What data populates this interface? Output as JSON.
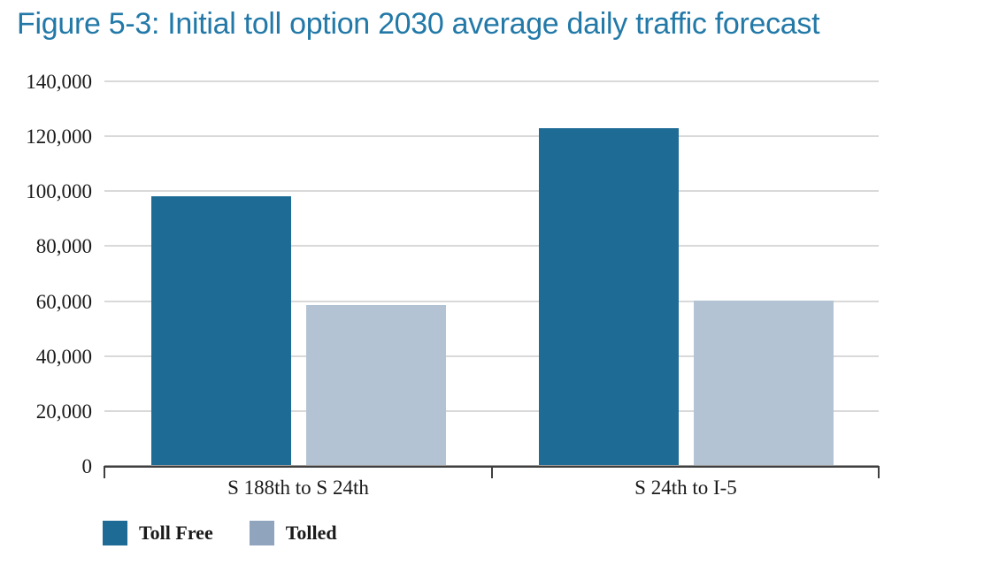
{
  "title": "Figure 5-3: Initial toll option 2030 average daily traffic forecast",
  "colors": {
    "title_text": "#2279A8",
    "axis_text": "#1a1a1a",
    "gridline": "#d9d9d9",
    "axis_line": "#3f3f3f",
    "toll_free_bar": "#1E6C96",
    "tolled_bar": "#B4C3D4",
    "tolled_legend_swatch": "#90A5BD"
  },
  "chart_data": {
    "type": "bar",
    "title": "Figure 5-3: Initial toll option 2030 average daily traffic forecast",
    "categories": [
      "S 188th to S 24th",
      "S 24th to I-5"
    ],
    "series": [
      {
        "name": "Toll Free",
        "values": [
          98000,
          123000
        ],
        "color": "#1E6C96",
        "legend_color": "#1E6C96"
      },
      {
        "name": "Tolled",
        "values": [
          58500,
          60300
        ],
        "color": "#B4C3D4",
        "legend_color": "#90A5BD"
      }
    ],
    "xlabel": "",
    "ylabel": "",
    "ylim": [
      0,
      140000
    ],
    "y_ticks": [
      {
        "value": 140000,
        "label": "140,000"
      },
      {
        "value": 120000,
        "label": "120,000"
      },
      {
        "value": 100000,
        "label": "100,000"
      },
      {
        "value": 80000,
        "label": "80,000"
      },
      {
        "value": 60000,
        "label": "60,000"
      },
      {
        "value": 40000,
        "label": "40,000"
      },
      {
        "value": 20000,
        "label": "20,000"
      },
      {
        "value": 0,
        "label": "0"
      }
    ],
    "grid": "horizontal-only",
    "legend_position": "bottom-left"
  }
}
